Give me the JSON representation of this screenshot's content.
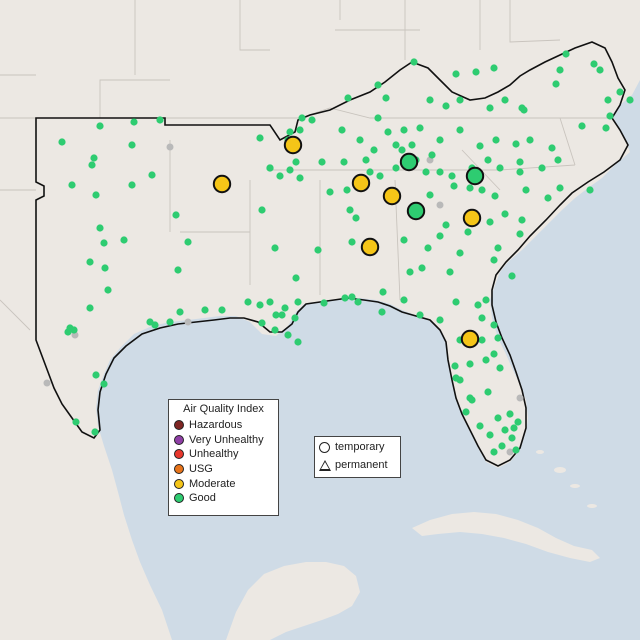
{
  "colors": {
    "hazardous": "#7e2523",
    "very_unhealthy": "#8f3fa6",
    "unhealthy": "#e8372c",
    "usg": "#e8741a",
    "moderate": "#f5c518",
    "good": "#2ecc71",
    "inactive": "#b9b9b9",
    "water": "#cfdbe6",
    "land": "#ece8e3"
  },
  "legend": {
    "title": "Air Quality Index",
    "items": [
      {
        "label": "Hazardous",
        "color_key": "hazardous"
      },
      {
        "label": "Very Unhealthy",
        "color_key": "very_unhealthy"
      },
      {
        "label": "Unhealthy",
        "color_key": "unhealthy"
      },
      {
        "label": "USG",
        "color_key": "usg"
      },
      {
        "label": "Moderate",
        "color_key": "moderate"
      },
      {
        "label": "Good",
        "color_key": "good"
      }
    ]
  },
  "shape_legend": {
    "temporary": "temporary",
    "permanent": "permanent"
  },
  "monitors": {
    "large": [
      {
        "aqi": "moderate"
      },
      {
        "aqi": "moderate"
      },
      {
        "aqi": "moderate"
      },
      {
        "aqi": "moderate"
      },
      {
        "aqi": "moderate"
      },
      {
        "aqi": "moderate"
      },
      {
        "aqi": "moderate"
      },
      {
        "aqi": "good"
      },
      {
        "aqi": "good"
      },
      {
        "aqi": "good"
      }
    ]
  }
}
